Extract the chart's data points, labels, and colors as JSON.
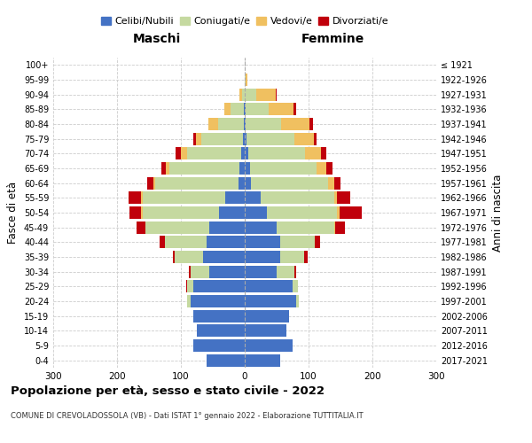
{
  "age_groups": [
    "0-4",
    "5-9",
    "10-14",
    "15-19",
    "20-24",
    "25-29",
    "30-34",
    "35-39",
    "40-44",
    "45-49",
    "50-54",
    "55-59",
    "60-64",
    "65-69",
    "70-74",
    "75-79",
    "80-84",
    "85-89",
    "90-94",
    "95-99",
    "100+"
  ],
  "birth_years": [
    "2017-2021",
    "2012-2016",
    "2007-2011",
    "2002-2006",
    "1997-2001",
    "1992-1996",
    "1987-1991",
    "1982-1986",
    "1977-1981",
    "1972-1976",
    "1967-1971",
    "1962-1966",
    "1957-1961",
    "1952-1956",
    "1947-1951",
    "1942-1946",
    "1937-1941",
    "1932-1936",
    "1927-1931",
    "1922-1926",
    "≤ 1921"
  ],
  "maschi": {
    "celibi": [
      60,
      80,
      75,
      80,
      85,
      80,
      55,
      65,
      60,
      55,
      40,
      30,
      10,
      8,
      5,
      3,
      2,
      2,
      0,
      0,
      0
    ],
    "coniugati": [
      0,
      0,
      0,
      0,
      5,
      10,
      30,
      45,
      65,
      100,
      120,
      130,
      130,
      110,
      85,
      65,
      40,
      20,
      4,
      0,
      0
    ],
    "vedovi": [
      0,
      0,
      0,
      0,
      0,
      0,
      0,
      0,
      0,
      0,
      2,
      2,
      3,
      5,
      10,
      8,
      15,
      10,
      5,
      0,
      0
    ],
    "divorziati": [
      0,
      0,
      0,
      0,
      0,
      2,
      3,
      3,
      8,
      15,
      18,
      20,
      10,
      8,
      8,
      5,
      0,
      0,
      0,
      0,
      0
    ]
  },
  "femmine": {
    "nubili": [
      55,
      75,
      65,
      70,
      80,
      75,
      50,
      55,
      55,
      50,
      35,
      25,
      10,
      8,
      5,
      3,
      2,
      2,
      0,
      0,
      0
    ],
    "coniugate": [
      0,
      0,
      0,
      0,
      5,
      8,
      28,
      38,
      55,
      90,
      110,
      115,
      120,
      105,
      90,
      75,
      55,
      35,
      18,
      2,
      0
    ],
    "vedove": [
      0,
      0,
      0,
      0,
      0,
      0,
      0,
      0,
      0,
      2,
      3,
      5,
      10,
      15,
      25,
      30,
      45,
      40,
      30,
      2,
      0
    ],
    "divorziate": [
      0,
      0,
      0,
      0,
      0,
      0,
      3,
      5,
      8,
      15,
      35,
      20,
      10,
      10,
      8,
      5,
      5,
      3,
      2,
      0,
      0
    ]
  },
  "colors": {
    "celibi": "#4472C4",
    "coniugati": "#c5d9a0",
    "vedovi": "#f0c060",
    "divorziati": "#c0000b"
  },
  "xlim": 300,
  "title": "Popolazione per età, sesso e stato civile - 2022",
  "subtitle": "COMUNE DI CREVOLADOSSOLA (VB) - Dati ISTAT 1° gennaio 2022 - Elaborazione TUTTITALIA.IT",
  "ylabel_left": "Fasce di età",
  "ylabel_right": "Anni di nascita",
  "xlabel_left": "Maschi",
  "xlabel_right": "Femmine"
}
